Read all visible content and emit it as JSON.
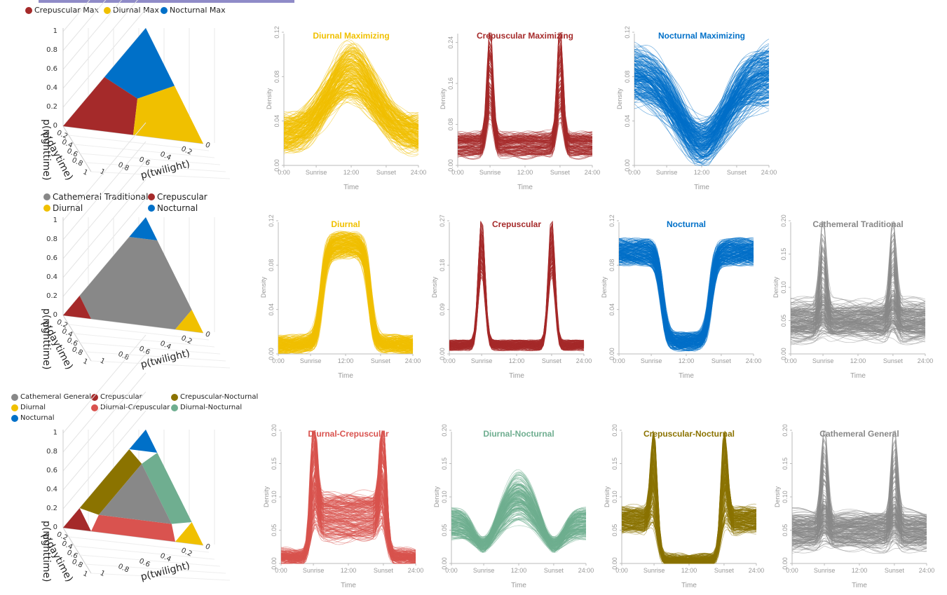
{
  "legends": [
    {
      "items": [
        {
          "label": "Crepuscular Max",
          "color": "#a52a2a"
        },
        {
          "label": "Diurnal Max",
          "color": "#f0c000"
        },
        {
          "label": "Nocturnal Max",
          "color": "#0070c8"
        }
      ]
    },
    {
      "items": [
        {
          "label": "Cathemeral Traditional",
          "color": "#888888"
        },
        {
          "label": "Crepuscular",
          "color": "#a52a2a"
        },
        {
          "label": "Diurnal",
          "color": "#f0c000"
        },
        {
          "label": "Nocturnal",
          "color": "#0070c8"
        }
      ]
    },
    {
      "items": [
        {
          "label": "Cathemeral General",
          "color": "#888888"
        },
        {
          "label": "Crepuscular",
          "color": "#a52a2a"
        },
        {
          "label": "Crepuscular-Nocturnal",
          "color": "#8b7300"
        },
        {
          "label": "Diurnal",
          "color": "#f0c000"
        },
        {
          "label": "Diurnal-Crepuscular",
          "color": "#d9534f"
        },
        {
          "label": "Diurnal-Nocturnal",
          "color": "#6fae90"
        },
        {
          "label": "Nocturnal",
          "color": "#0070c8"
        }
      ]
    }
  ],
  "ternary_axes": {
    "z_label": "p(nighttime)",
    "y_label": "p(daytime)",
    "x_label": "p(twilight)",
    "z_ticks": [
      "0",
      "0.2",
      "0.4",
      "0.6",
      "0.8",
      "1"
    ],
    "y_ticks": [
      "0.2",
      "0.4",
      "0.6",
      "0.8",
      "1"
    ],
    "x_ticks": [
      "1",
      "0.8",
      "0.6",
      "0.4",
      "0.2",
      "0"
    ]
  },
  "x_tick_labels": [
    "0:00",
    "Sunrise",
    "12:00",
    "Sunset",
    "24:00"
  ],
  "x_label": "Time",
  "y_label": "Density",
  "chart_data": [
    {
      "type": "line",
      "title": "Diurnal Maximizing",
      "color": "#f0c000",
      "profile": "diurnal",
      "n_lines": 220,
      "ylim": [
        0,
        0.12
      ],
      "yticks": [
        "0.00",
        "0.04",
        "0.08",
        "0.12"
      ],
      "xticks": [
        "0:00",
        "Sunrise",
        "12:00",
        "Sunset",
        "24:00"
      ],
      "xlabel": "Time",
      "ylabel": "Density"
    },
    {
      "type": "line",
      "title": "Crepuscular Maximizing",
      "color": "#a52a2a",
      "profile": "crepuscular",
      "n_lines": 150,
      "ylim": [
        0,
        0.26
      ],
      "yticks": [
        "0.00",
        "0.08",
        "0.16",
        "0.24"
      ],
      "xticks": [
        "0:00",
        "Sunrise",
        "12:00",
        "Sunset",
        "24:00"
      ],
      "xlabel": "Time",
      "ylabel": "Density"
    },
    {
      "type": "line",
      "title": "Nocturnal Maximizing",
      "color": "#0070c8",
      "profile": "nocturnal",
      "n_lines": 220,
      "ylim": [
        0,
        0.12
      ],
      "yticks": [
        "0.00",
        "0.04",
        "0.08",
        "0.12"
      ],
      "xticks": [
        "0:00",
        "Sunrise",
        "12:00",
        "Sunset",
        "24:00"
      ],
      "xlabel": "Time",
      "ylabel": "Density"
    },
    {
      "type": "line",
      "title": "Diurnal",
      "color": "#f0c000",
      "profile": "diurnal_tight",
      "n_lines": 220,
      "ylim": [
        0,
        0.12
      ],
      "yticks": [
        "0.00",
        "0.04",
        "0.08",
        "0.12"
      ],
      "xticks": [
        "0:00",
        "Sunrise",
        "12:00",
        "Sunset",
        "24:00"
      ],
      "xlabel": "Time",
      "ylabel": "Density"
    },
    {
      "type": "line",
      "title": "Crepuscular",
      "color": "#a52a2a",
      "profile": "crepuscular_tight",
      "n_lines": 180,
      "ylim": [
        0,
        0.27
      ],
      "yticks": [
        "0.00",
        "0.09",
        "0.18",
        "0.27"
      ],
      "xticks": [
        "0:00",
        "Sunrise",
        "12:00",
        "Sunset",
        "24:00"
      ],
      "xlabel": "Time",
      "ylabel": "Density"
    },
    {
      "type": "line",
      "title": "Nocturnal",
      "color": "#0070c8",
      "profile": "nocturnal_tight",
      "n_lines": 220,
      "ylim": [
        0,
        0.12
      ],
      "yticks": [
        "0.00",
        "0.04",
        "0.08",
        "0.12"
      ],
      "xticks": [
        "0:00",
        "Sunrise",
        "12:00",
        "Sunset",
        "24:00"
      ],
      "xlabel": "Time",
      "ylabel": "Density"
    },
    {
      "type": "line",
      "title": "Cathemeral Traditional",
      "color": "#888888",
      "profile": "cathemeral",
      "n_lines": 200,
      "ylim": [
        0,
        0.2
      ],
      "yticks": [
        "0.00",
        "0.05",
        "0.10",
        "0.15",
        "0.20"
      ],
      "xticks": [
        "0:00",
        "Sunrise",
        "12:00",
        "Sunset",
        "24:00"
      ],
      "xlabel": "Time",
      "ylabel": "Density"
    },
    {
      "type": "line",
      "title": "Diurnal-Crepuscular",
      "color": "#d9534f",
      "profile": "diurnal_crep",
      "n_lines": 200,
      "ylim": [
        0,
        0.2
      ],
      "yticks": [
        "0.00",
        "0.05",
        "0.10",
        "0.15",
        "0.20"
      ],
      "xticks": [
        "0:00",
        "Sunrise",
        "12:00",
        "Sunset",
        "24:00"
      ],
      "xlabel": "Time",
      "ylabel": "Density"
    },
    {
      "type": "line",
      "title": "Diurnal-Nocturnal",
      "color": "#6fae90",
      "profile": "diurnal_noct",
      "n_lines": 200,
      "ylim": [
        0,
        0.2
      ],
      "yticks": [
        "0.00",
        "0.05",
        "0.10",
        "0.15",
        "0.20"
      ],
      "xticks": [
        "0:00",
        "Sunrise",
        "12:00",
        "Sunset",
        "24:00"
      ],
      "xlabel": "Time",
      "ylabel": "Density"
    },
    {
      "type": "line",
      "title": "Crepuscular-Nocturnal",
      "color": "#8b7300",
      "profile": "crep_noct",
      "n_lines": 200,
      "ylim": [
        0,
        0.2
      ],
      "yticks": [
        "0.00",
        "0.05",
        "0.10",
        "0.15",
        "0.20"
      ],
      "xticks": [
        "0:00",
        "Sunrise",
        "12:00",
        "Sunset",
        "24:00"
      ],
      "xlabel": "Time",
      "ylabel": "Density"
    },
    {
      "type": "line",
      "title": "Cathemeral General",
      "color": "#888888",
      "profile": "cathemeral",
      "n_lines": 200,
      "ylim": [
        0,
        0.2
      ],
      "yticks": [
        "0.00",
        "0.05",
        "0.10",
        "0.15",
        "0.20"
      ],
      "xticks": [
        "0:00",
        "Sunrise",
        "12:00",
        "Sunset",
        "24:00"
      ],
      "xlabel": "Time",
      "ylabel": "Density"
    }
  ]
}
